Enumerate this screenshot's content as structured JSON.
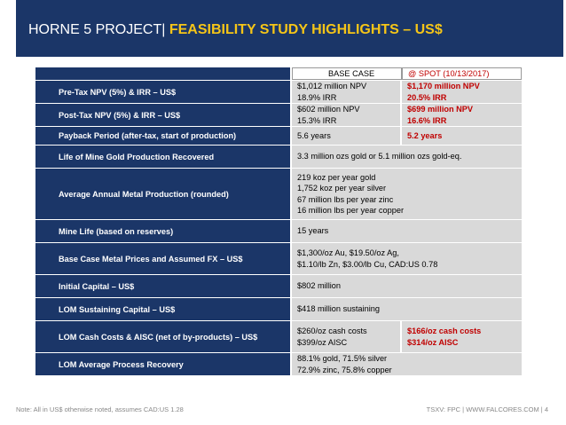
{
  "header": {
    "title_plain": "HORNE 5 PROJECT| ",
    "title_accent": "FEASIBILITY STUDY HIGHLIGHTS – US$"
  },
  "table": {
    "col_base": "BASE CASE",
    "col_spot": "@ SPOT (10/13/2017)",
    "rows": [
      {
        "label": "Pre-Tax NPV (5%) & IRR – US$",
        "base": [
          "$1,012 million NPV",
          "18.9% IRR"
        ],
        "spot": [
          "$1,170 million NPV",
          "20.5% IRR"
        ]
      },
      {
        "label": "Post-Tax NPV (5%) & IRR – US$",
        "base": [
          "$602 million NPV",
          "15.3% IRR"
        ],
        "spot": [
          "$699 million NPV",
          "16.6% IRR"
        ]
      },
      {
        "label": "Payback Period (after-tax, start of production)",
        "base": [
          "5.6 years"
        ],
        "spot": [
          "5.2 years"
        ]
      },
      {
        "label": "Life of Mine Gold Production Recovered",
        "wide": [
          "3.3 million ozs gold or 5.1 million ozs gold-eq."
        ]
      },
      {
        "label": "Average Annual Metal Production (rounded)",
        "wide": [
          "219 koz per year gold",
          "1,752 koz per year silver",
          "67 million lbs per year zinc",
          "16 million lbs per year copper"
        ]
      },
      {
        "label": "Mine Life (based on reserves)",
        "wide": [
          "15 years"
        ]
      },
      {
        "label": "Base Case Metal Prices and Assumed FX – US$",
        "wide": [
          "$1,300/oz Au, $19.50/oz Ag,",
          "$1.10/lb Zn, $3.00/lb Cu, CAD:US 0.78"
        ]
      },
      {
        "label": "Initial Capital – US$",
        "wide": [
          "$802 million"
        ]
      },
      {
        "label": "LOM Sustaining Capital – US$",
        "wide": [
          "$418 million sustaining"
        ]
      },
      {
        "label": "LOM Cash Costs & AISC (net of by-products) – US$",
        "base": [
          "$260/oz cash costs",
          "$399/oz AISC"
        ],
        "spot": [
          "$166/oz cash costs",
          "$314/oz AISC"
        ]
      },
      {
        "label": "LOM Average Process Recovery",
        "wide": [
          "88.1% gold, 71.5% silver",
          "72.9% zinc, 75.8% copper"
        ]
      }
    ]
  },
  "footer": {
    "note": "Note: All in US$ otherwise noted, assumes CAD:US 1.28",
    "page": "TSXV: FPC | WWW.FALCORES.COM | 4"
  }
}
